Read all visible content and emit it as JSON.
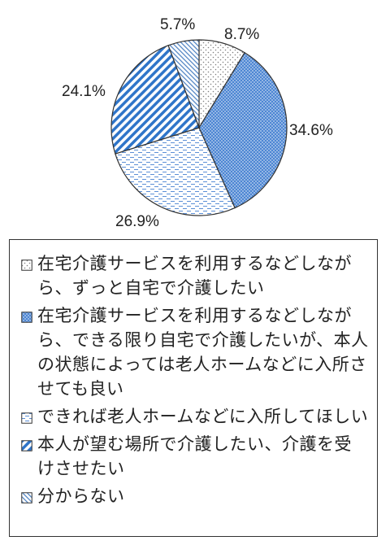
{
  "chart_data": {
    "type": "pie",
    "title": "",
    "unit": "%",
    "slices": [
      {
        "label": "在宅介護サービスを利用するなどしながら、ずっと自宅で介護したい",
        "value": 8.7,
        "value_label": "8.7%",
        "color": "#7f7f7f",
        "pattern": "dots"
      },
      {
        "label": "在宅介護サービスを利用するなどしながら、できる限り自宅で介護したいが、本人の状態によっては老人ホームなどに入所させても良い",
        "value": 34.6,
        "value_label": "34.6%",
        "color": "#5b8fd6",
        "pattern": "dense-dots"
      },
      {
        "label": "できれば老人ホームなどに入所してほしい",
        "value": 26.9,
        "value_label": "26.9%",
        "color": "#5b8fd6",
        "pattern": "dashes"
      },
      {
        "label": "本人が望む場所で介護したい、介護を受けさせたい",
        "value": 24.1,
        "value_label": "24.1%",
        "color": "#2f75c9",
        "pattern": "diagonal-stripes"
      },
      {
        "label": "分からない",
        "value": 5.7,
        "value_label": "5.7%",
        "color": "#4a7fc1",
        "pattern": "fine-diagonal"
      }
    ],
    "legend_position": "bottom"
  }
}
